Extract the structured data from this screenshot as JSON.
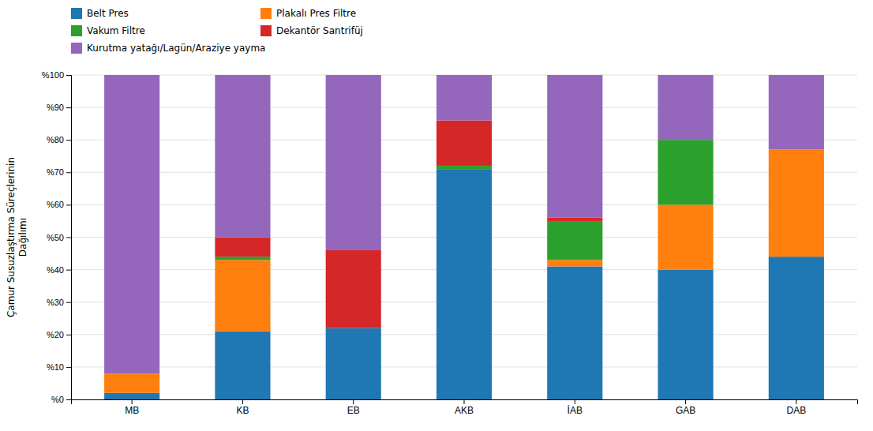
{
  "chart_data": {
    "type": "bar",
    "stacked": true,
    "ylabel": "Çamur Susuzlaştırma Süreçlerinin\nDağılımı",
    "categories": [
      "MB",
      "KB",
      "EB",
      "AKB",
      "İAB",
      "GAB",
      "DAB"
    ],
    "series": [
      {
        "name": "Belt Pres",
        "values": [
          2,
          21,
          22,
          71,
          41,
          40,
          44
        ]
      },
      {
        "name": "Plakalı Pres Filtre",
        "values": [
          6,
          22,
          0,
          0,
          2,
          20,
          33
        ]
      },
      {
        "name": "Vakum Filtre",
        "values": [
          0,
          1,
          0,
          1,
          12,
          20,
          0
        ]
      },
      {
        "name": "Dekantör Santrifüj",
        "values": [
          0,
          6,
          24,
          14,
          1,
          0,
          0
        ]
      },
      {
        "name": "Kurutma yatağı/Lagün/Araziye yayma",
        "values": [
          92,
          50,
          54,
          14,
          44,
          20,
          23
        ]
      }
    ],
    "ylim": [
      0,
      100
    ],
    "yticks": [
      {
        "value": 0,
        "label": "%0"
      },
      {
        "value": 10,
        "label": "%10"
      },
      {
        "value": 20,
        "label": "%20"
      },
      {
        "value": 30,
        "label": "%30"
      },
      {
        "value": 40,
        "label": "%40"
      },
      {
        "value": 50,
        "label": "%50"
      },
      {
        "value": 60,
        "label": "%60"
      },
      {
        "value": 70,
        "label": "%70"
      },
      {
        "value": 80,
        "label": "%80"
      },
      {
        "value": 90,
        "label": "%90"
      },
      {
        "value": 100,
        "label": "%100"
      }
    ],
    "grid": true,
    "legend": "top"
  }
}
